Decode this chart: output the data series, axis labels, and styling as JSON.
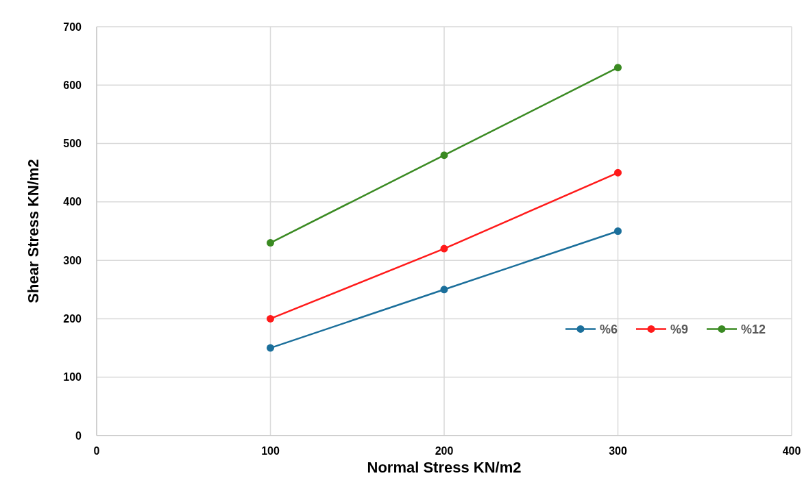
{
  "chart_data": {
    "type": "line",
    "xlabel": "Normal Stress KN/m2",
    "ylabel": "Shear Stress KN/m2",
    "xlim": [
      0,
      400
    ],
    "xticks": [
      0,
      100,
      200,
      300,
      400
    ],
    "ylim": [
      0,
      700
    ],
    "yticks": [
      0,
      100,
      200,
      300,
      400,
      500,
      600,
      700
    ],
    "grid": true,
    "legend": "right",
    "marker": "circle",
    "line_style": "solid",
    "series": [
      {
        "name": "%6",
        "color": "#1b6f9b",
        "x": [
          100,
          200,
          300
        ],
        "values": [
          150,
          250,
          350
        ]
      },
      {
        "name": "%9",
        "color": "#ff1a1a",
        "x": [
          100,
          200,
          300
        ],
        "values": [
          200,
          320,
          450
        ]
      },
      {
        "name": "%12",
        "color": "#3a8a22",
        "x": [
          100,
          200,
          300
        ],
        "values": [
          330,
          480,
          630
        ]
      }
    ]
  }
}
